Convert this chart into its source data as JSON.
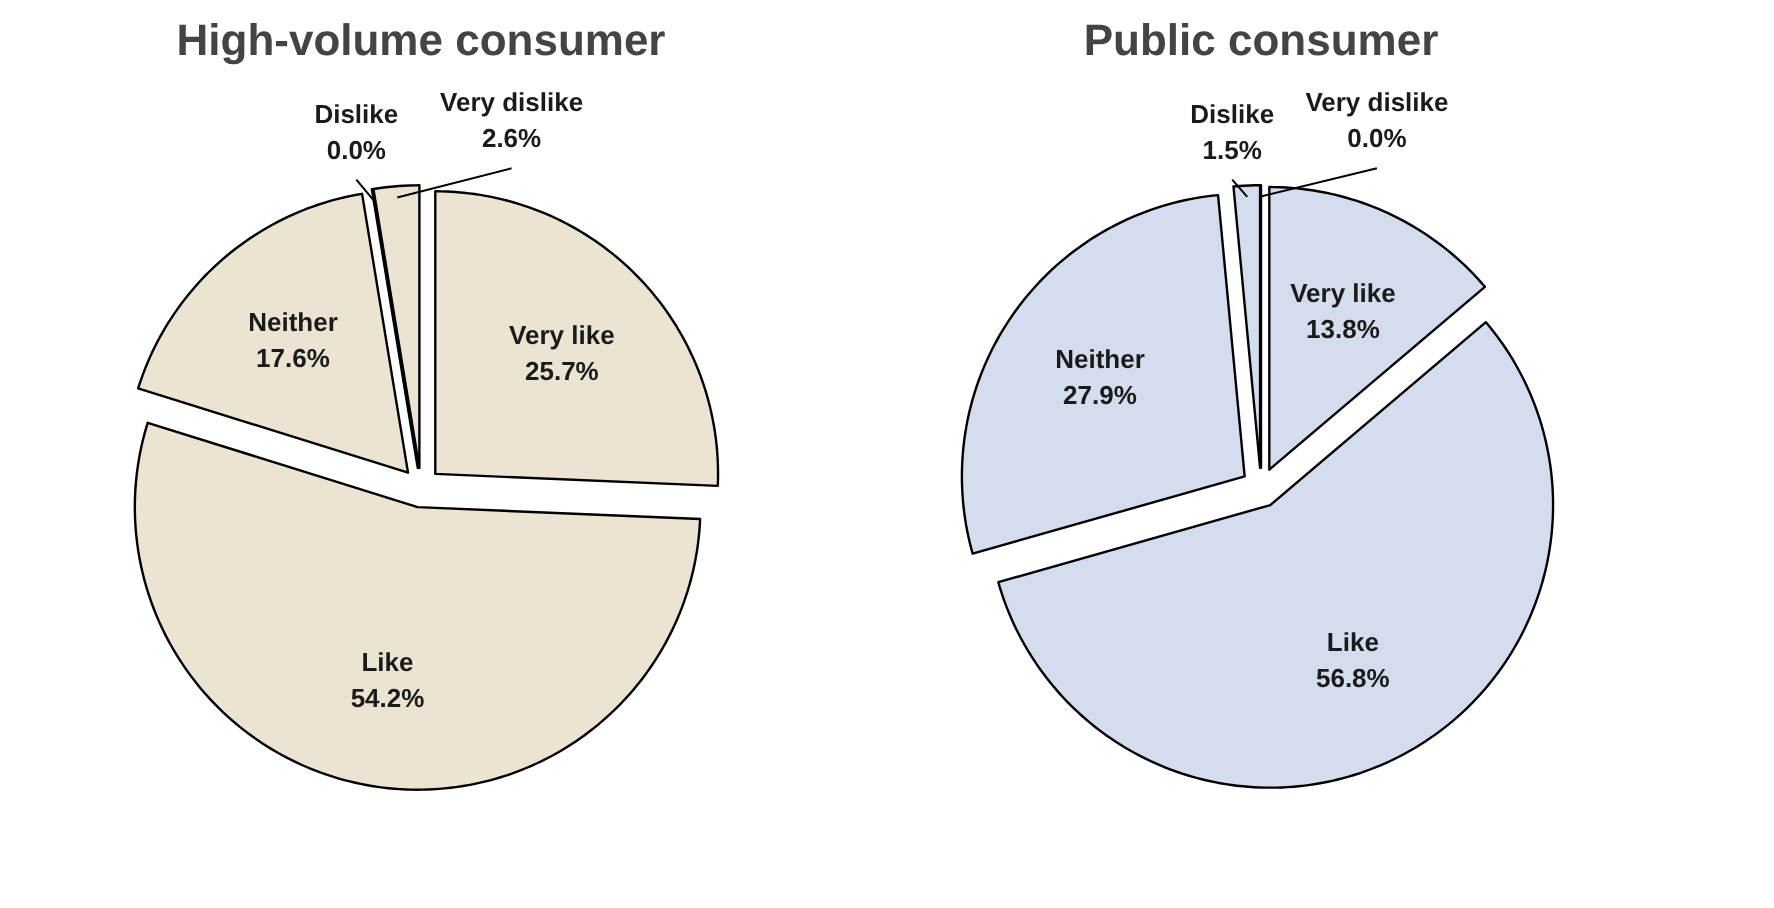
{
  "chart_data": [
    {
      "type": "pie",
      "title": "High-volume consumer",
      "categories": [
        "Very like",
        "Like",
        "Neither",
        "Dislike",
        "Very dislike"
      ],
      "values": [
        25.7,
        54.2,
        17.6,
        0.0,
        2.6
      ],
      "value_labels": [
        "25.7%",
        "54.2%",
        "17.6%",
        "0.0%",
        "2.6%"
      ],
      "colors": [
        "#ece4d2",
        "#ece4d2",
        "#ece4d2",
        "#ece4d2",
        "#ece4d2"
      ]
    },
    {
      "type": "pie",
      "title": "Public consumer",
      "categories": [
        "Very like",
        "Like",
        "Neither",
        "Dislike",
        "Very dislike"
      ],
      "values": [
        13.8,
        56.8,
        27.9,
        1.5,
        0.0
      ],
      "value_labels": [
        "13.8%",
        "56.8%",
        "27.9%",
        "1.5%",
        "0.0%"
      ],
      "colors": [
        "#d3ddee",
        "#d3ddee",
        "#d3ddee",
        "#d3ddee",
        "#d3ddee"
      ]
    }
  ]
}
